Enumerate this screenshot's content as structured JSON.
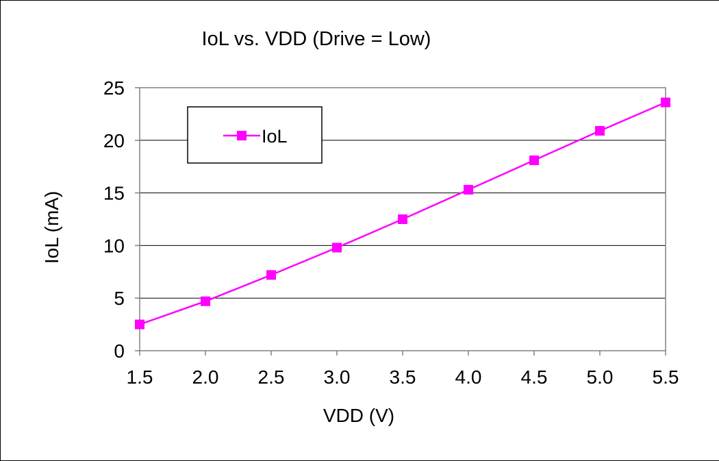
{
  "chart_data": {
    "type": "line",
    "title": "IoL vs. VDD (Drive = Low)",
    "xlabel": "VDD (V)",
    "ylabel": "IoL (mA)",
    "xlim": [
      1.5,
      5.5
    ],
    "ylim": [
      0,
      25
    ],
    "x_ticks": [
      "1.5",
      "2.0",
      "2.5",
      "3.0",
      "3.5",
      "4.0",
      "4.5",
      "5.0",
      "5.5"
    ],
    "y_ticks": [
      "0",
      "5",
      "10",
      "15",
      "20",
      "25"
    ],
    "grid": "horizontal",
    "legend_position": "top-left",
    "series": [
      {
        "name": "IoL",
        "color": "#ff00ff",
        "marker": "square",
        "x": [
          1.5,
          2.0,
          2.5,
          3.0,
          3.5,
          4.0,
          4.5,
          5.0,
          5.5
        ],
        "y": [
          2.5,
          4.7,
          7.2,
          9.8,
          12.5,
          15.3,
          18.1,
          20.9,
          23.6
        ]
      }
    ]
  }
}
